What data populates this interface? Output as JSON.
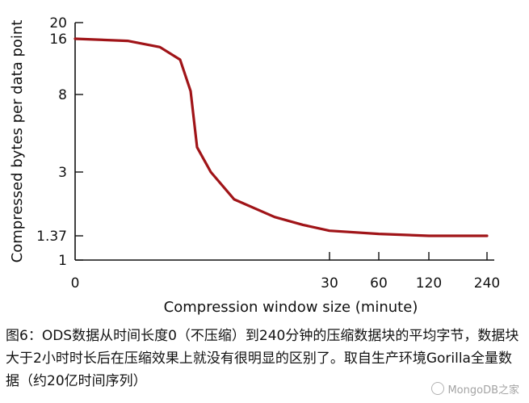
{
  "chart_data": {
    "type": "line",
    "xlabel": "Compression window size (minute)",
    "ylabel": "Compressed bytes per data point",
    "x_ticks": [
      "0",
      "30",
      "60",
      "120",
      "240"
    ],
    "y_ticks": [
      "20",
      "16",
      "8",
      "3",
      "1.37",
      "1"
    ],
    "ylim": [
      1,
      20
    ],
    "grid": false,
    "series": [
      {
        "color": "#a01418",
        "points": [
          [
            0,
            16.0
          ],
          [
            1,
            15.7
          ],
          [
            2,
            14.8
          ],
          [
            2.6,
            13.0
          ],
          [
            3.0,
            8.5
          ],
          [
            3.3,
            4.6
          ],
          [
            3.7,
            3.0
          ],
          [
            5.0,
            2.3
          ],
          [
            8.0,
            1.85
          ],
          [
            15.0,
            1.65
          ],
          [
            30,
            1.5
          ],
          [
            60,
            1.42
          ],
          [
            120,
            1.37
          ],
          [
            240,
            1.37
          ]
        ]
      }
    ]
  },
  "caption": {
    "text": "图6：ODS数据从时间长度0（不压缩）到240分钟的压缩数据块的平均字节，数据块大于2小时时长后在压缩效果上就没有很明显的区别了。取自生产环境Gorilla全量数据（约20亿时间序列）"
  },
  "watermark": {
    "text": "MongoDB之家"
  }
}
